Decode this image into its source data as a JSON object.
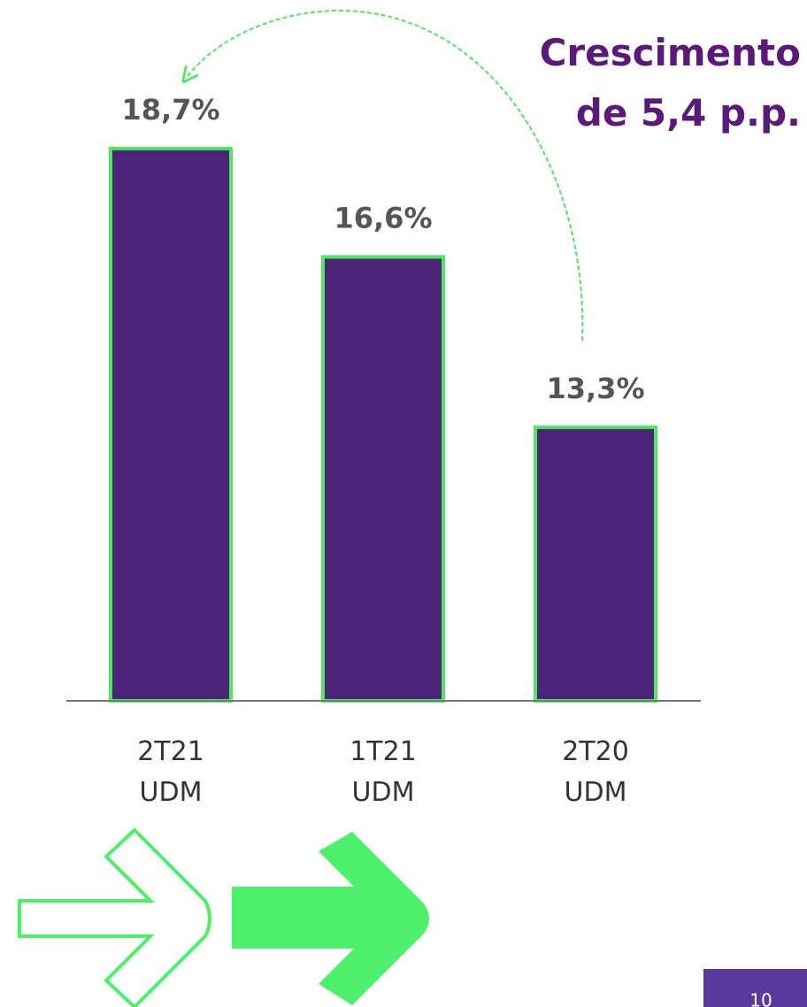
{
  "chart_data": {
    "type": "bar",
    "categories": [
      "2T21\nUDM",
      "1T21\nUDM",
      "2T20\nUDM"
    ],
    "values": [
      18.7,
      16.6,
      13.3
    ],
    "value_labels": [
      "18,7%",
      "16,6%",
      "13,3%"
    ],
    "color": "#4b2378",
    "edge_color": "#4ee85c",
    "ylim": [
      8,
      20
    ],
    "annotation": "Crescimento\nde 5,4 p.p."
  },
  "page_number": "10"
}
